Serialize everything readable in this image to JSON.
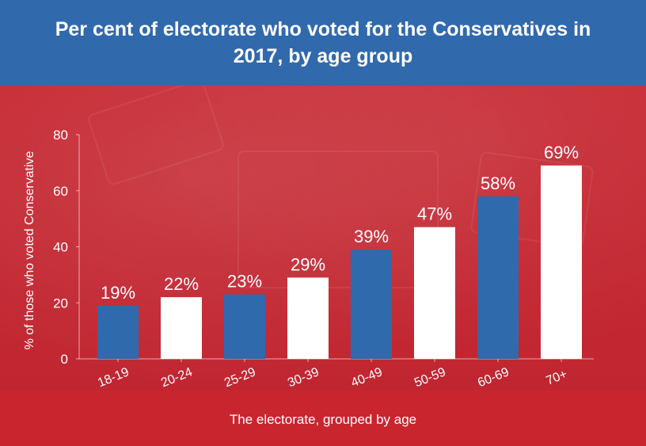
{
  "chart_data": {
    "type": "bar",
    "title": "Per cent of electorate who voted for the Conservatives in 2017, by age group",
    "xlabel": "The electorate, grouped by age",
    "ylabel": "% of those who voted Conservative",
    "categories": [
      "18-19",
      "20-24",
      "25-29",
      "30-39",
      "40-49",
      "50-59",
      "60-69",
      "70+"
    ],
    "values": [
      19,
      22,
      23,
      29,
      39,
      47,
      58,
      69
    ],
    "value_labels": [
      "19%",
      "22%",
      "23%",
      "29%",
      "39%",
      "47%",
      "58%",
      "69%"
    ],
    "bar_colors": [
      "#2f6aad",
      "#ffffff",
      "#2f6aad",
      "#ffffff",
      "#2f6aad",
      "#ffffff",
      "#2f6aad",
      "#ffffff"
    ],
    "ylim": [
      0,
      80
    ],
    "yticks": [
      0,
      20,
      40,
      60,
      80
    ],
    "grid": false
  },
  "colors": {
    "header": "#3169ad",
    "background": "#c0262f",
    "text": "#ffffff"
  }
}
